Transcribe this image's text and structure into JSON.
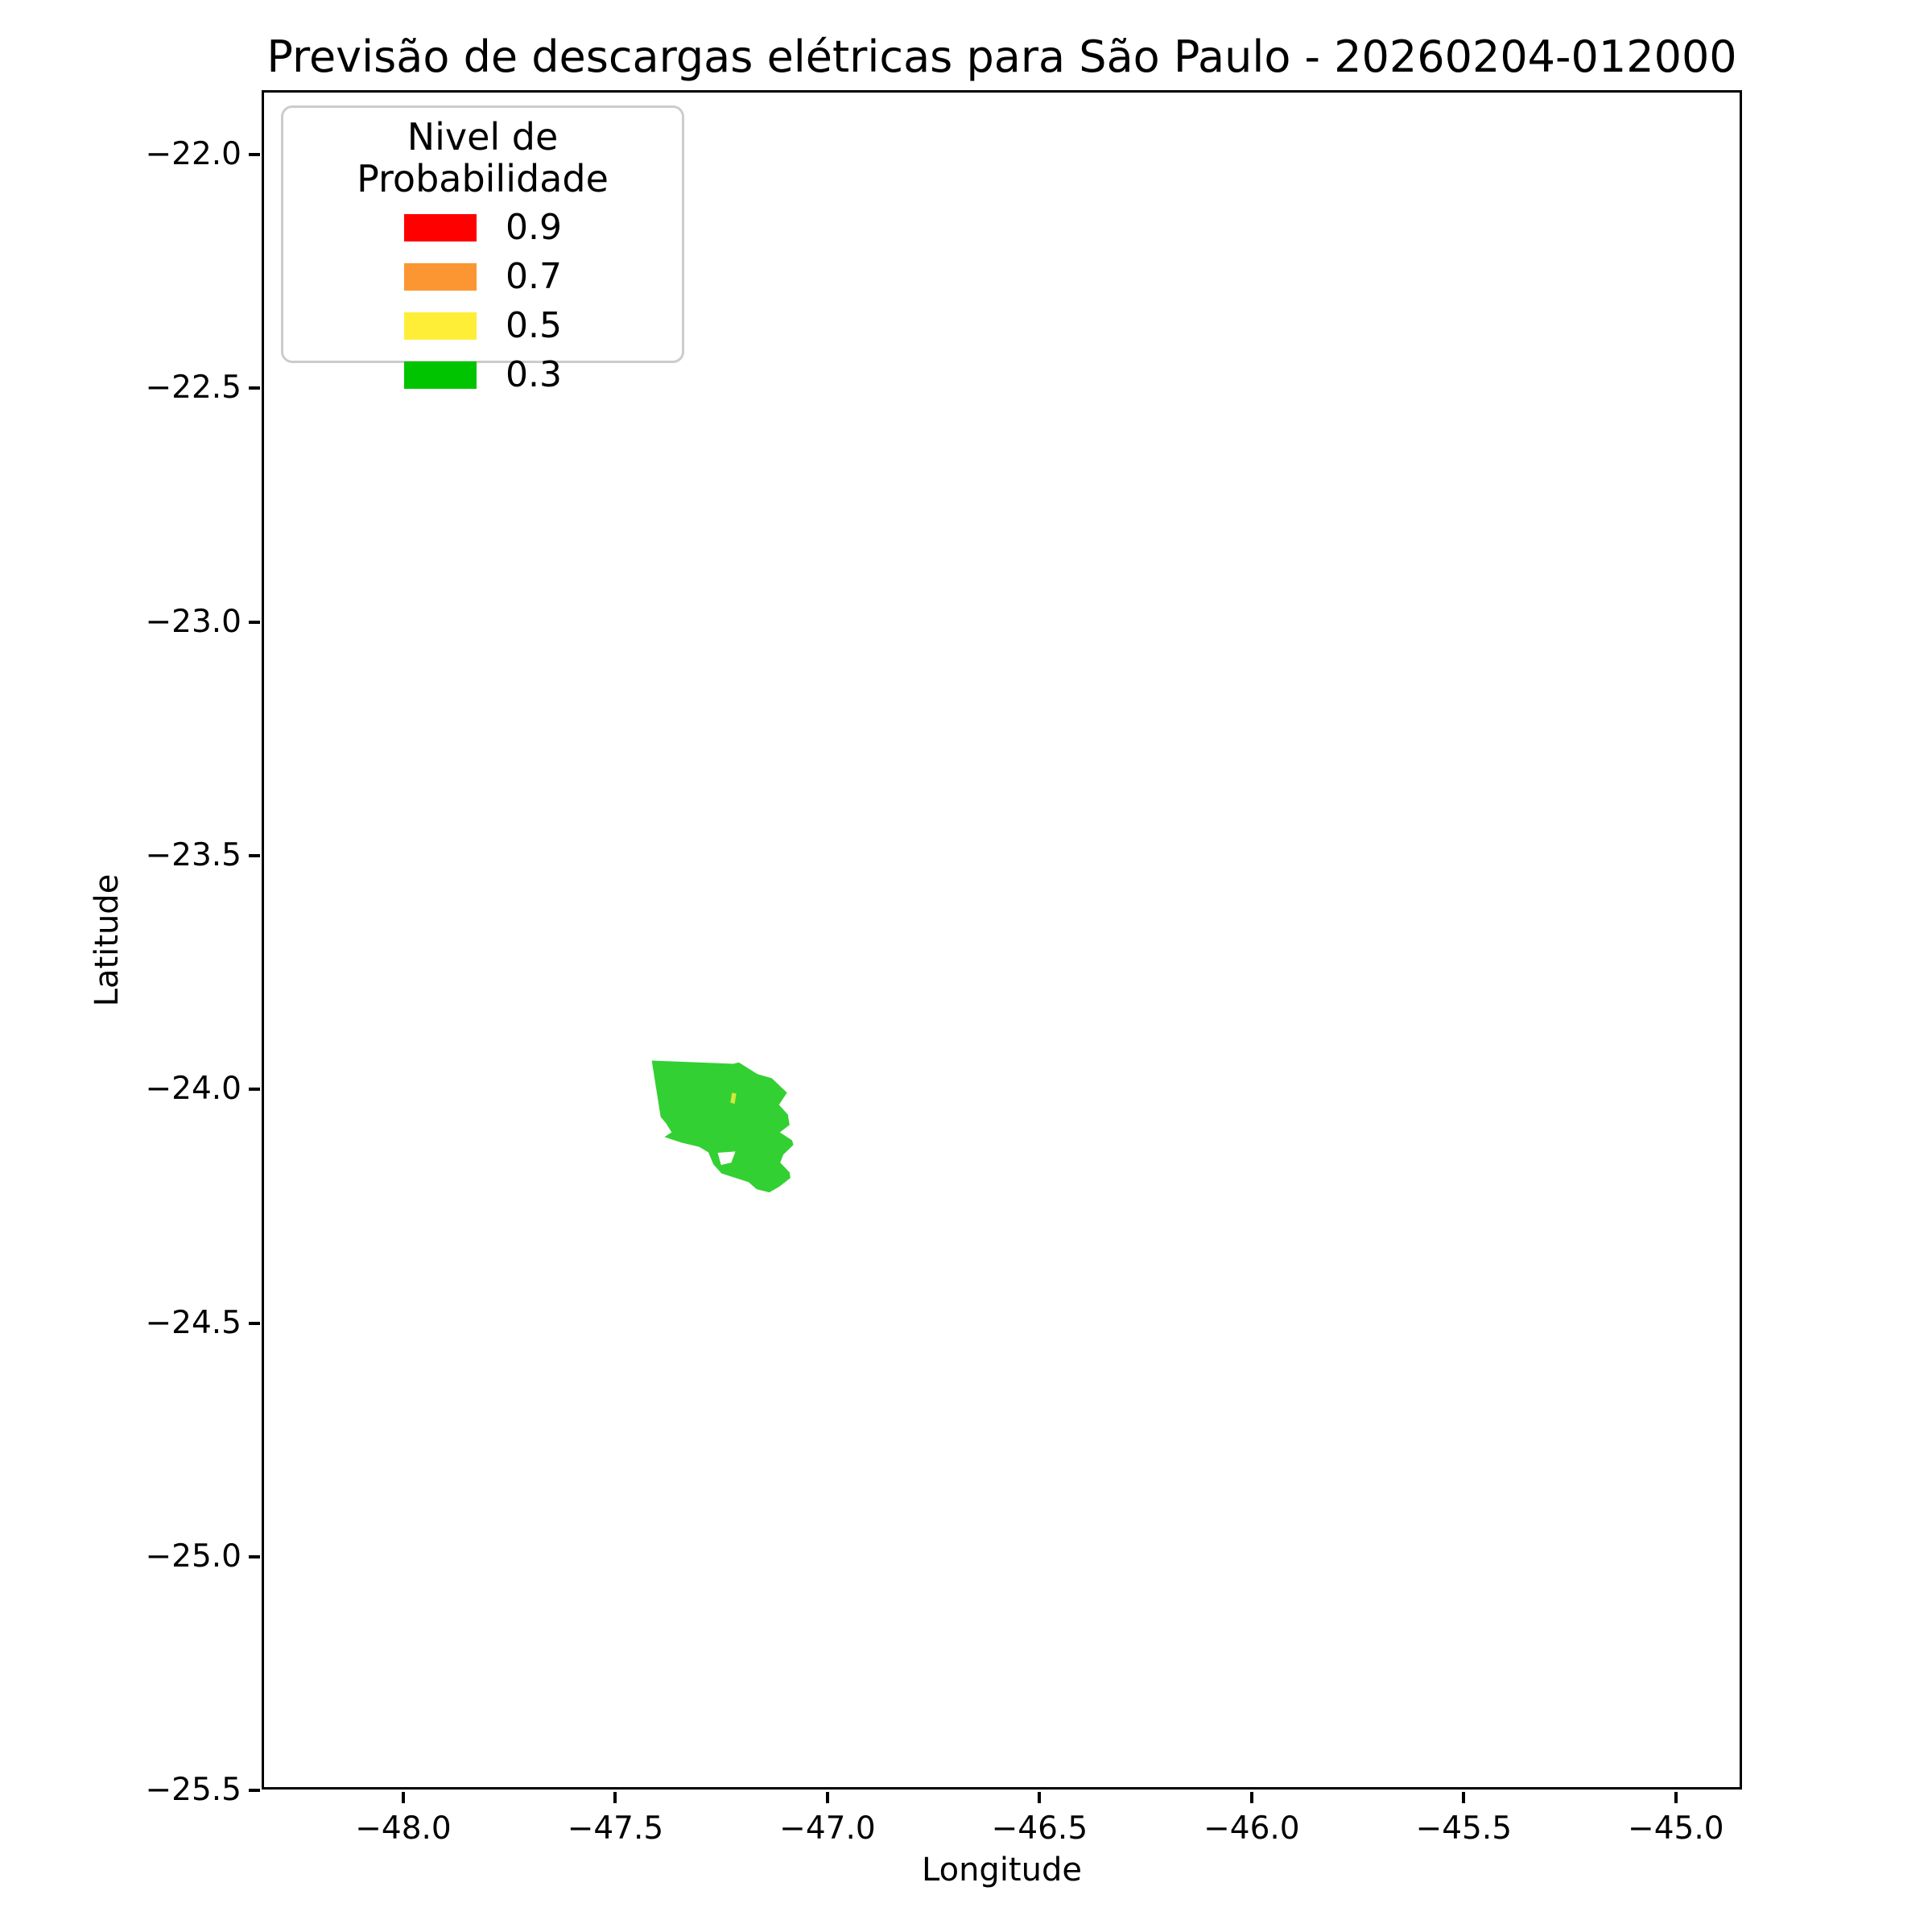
{
  "title": "Previsão de descargas elétricas para São Paulo - 20260204-012000",
  "axes": {
    "xlabel": "Longitude",
    "ylabel": "Latitude"
  },
  "legend": {
    "title": "Nivel de Probabilidade",
    "entries": [
      {
        "label": "0.9",
        "color": "#ff0000"
      },
      {
        "label": "0.7",
        "color": "#fb9632"
      },
      {
        "label": "0.5",
        "color": "#ffee38"
      },
      {
        "label": "0.3",
        "color": "#00c400"
      }
    ]
  },
  "chart_data": {
    "type": "area",
    "title": "Previsão de descargas elétricas para São Paulo - 20260204-012000",
    "xlabel": "Longitude",
    "ylabel": "Latitude",
    "xlim": [
      -48.334,
      -44.844
    ],
    "ylim": [
      -25.498,
      -21.862
    ],
    "grid": false,
    "legend_position": "upper left",
    "x_ticks": {
      "values": [
        -48.0,
        -47.5,
        -47.0,
        -46.5,
        -46.0,
        -45.5,
        -45.0
      ],
      "labels": [
        "−48.0",
        "−47.5",
        "−47.0",
        "−46.5",
        "−46.0",
        "−45.5",
        "−45.0"
      ]
    },
    "y_ticks": {
      "values": [
        -22.0,
        -22.5,
        -23.0,
        -23.5,
        -24.0,
        -24.5,
        -25.0,
        -25.5
      ],
      "labels": [
        "−22.0",
        "−22.5",
        "−23.0",
        "−23.5",
        "−24.0",
        "−24.5",
        "−25.0",
        "−25.5"
      ]
    },
    "regions": [
      {
        "name": "probability-region-0.3",
        "level": 0.3,
        "color": "#00c400",
        "fill_opacity": 0.8,
        "outer": [
          [
            -47.417,
            -23.939
          ],
          [
            -47.224,
            -23.946
          ],
          [
            -47.211,
            -23.943
          ],
          [
            -47.167,
            -23.968
          ],
          [
            -47.133,
            -23.977
          ],
          [
            -47.097,
            -24.008
          ],
          [
            -47.116,
            -24.034
          ],
          [
            -47.095,
            -24.055
          ],
          [
            -47.091,
            -24.077
          ],
          [
            -47.114,
            -24.093
          ],
          [
            -47.085,
            -24.11
          ],
          [
            -47.082,
            -24.12
          ],
          [
            -47.106,
            -24.141
          ],
          [
            -47.113,
            -24.158
          ],
          [
            -47.091,
            -24.179
          ],
          [
            -47.089,
            -24.191
          ],
          [
            -47.116,
            -24.21
          ],
          [
            -47.139,
            -24.222
          ],
          [
            -47.169,
            -24.215
          ],
          [
            -47.188,
            -24.2
          ],
          [
            -47.252,
            -24.181
          ],
          [
            -47.271,
            -24.162
          ],
          [
            -47.283,
            -24.136
          ],
          [
            -47.305,
            -24.124
          ],
          [
            -47.347,
            -24.115
          ],
          [
            -47.387,
            -24.103
          ],
          [
            -47.37,
            -24.093
          ],
          [
            -47.383,
            -24.074
          ],
          [
            -47.396,
            -24.06
          ]
        ],
        "holes": [
          [
            [
              -47.261,
              -24.137
            ],
            [
              -47.219,
              -24.134
            ],
            [
              -47.229,
              -24.158
            ],
            [
              -47.253,
              -24.163
            ]
          ]
        ]
      },
      {
        "name": "probability-region-0.5",
        "level": 0.5,
        "color": "#ffee38",
        "fill_opacity": 0.8,
        "outer": [
          [
            -47.227,
            -24.008
          ],
          [
            -47.217,
            -24.01
          ],
          [
            -47.221,
            -24.032
          ],
          [
            -47.231,
            -24.029
          ]
        ],
        "holes": []
      }
    ]
  }
}
